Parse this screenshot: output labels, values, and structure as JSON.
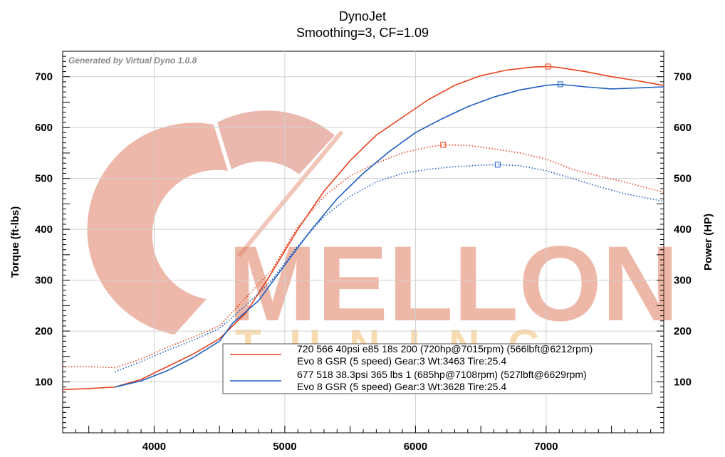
{
  "chart_data": {
    "type": "line",
    "title": "DynoJet",
    "subtitle": "Smoothing=3, CF=1.09",
    "watermark_note": "Generated by Virtual Dyno 1.0.8",
    "watermark_logo_text": "MELLON",
    "watermark_logo_subtext": "TUNING",
    "xlabel": "",
    "ylabel_left": "Torque (ft-lbs)",
    "ylabel_right": "Power (HP)",
    "xlim": [
      3300,
      7900
    ],
    "ylim": [
      0,
      750
    ],
    "x_ticks": [
      4000,
      5000,
      6000,
      7000
    ],
    "y_ticks": [
      100,
      200,
      300,
      400,
      500,
      600,
      700
    ],
    "grid": true,
    "legend_position": "bottom-right",
    "series": [
      {
        "name": "720 566 40psi e85 18s 200 (720hp@7015rpm) (566lbft@6212rpm)",
        "name_line2": "Evo 8 GSR (5 speed) Gear:3 Wt:3463 Tire:25.4",
        "measure": "power",
        "axis": "right",
        "color": "#e8431e",
        "style": "solid",
        "peak_marker": [
          7015,
          720
        ],
        "x": [
          3300,
          3500,
          3700,
          3900,
          4100,
          4300,
          4500,
          4700,
          4900,
          5100,
          5300,
          5500,
          5700,
          5900,
          6100,
          6300,
          6500,
          6700,
          6900,
          7015,
          7100,
          7300,
          7500,
          7700,
          7900
        ],
        "y": [
          85,
          87,
          90,
          105,
          130,
          155,
          185,
          235,
          315,
          400,
          475,
          535,
          585,
          620,
          655,
          683,
          702,
          713,
          719,
          720,
          718,
          710,
          700,
          692,
          683
        ]
      },
      {
        "name": "720 566 40psi e85 18s 200 torque",
        "measure": "torque",
        "axis": "left",
        "color": "#e8431e",
        "style": "dotted",
        "peak_marker": [
          6212,
          566
        ],
        "x": [
          3300,
          3500,
          3700,
          3900,
          4100,
          4300,
          4500,
          4700,
          4900,
          5100,
          5300,
          5500,
          5700,
          5900,
          6100,
          6212,
          6400,
          6600,
          6800,
          7000,
          7200,
          7400,
          7600,
          7900
        ],
        "y": [
          130,
          130,
          128,
          145,
          168,
          188,
          210,
          265,
          320,
          405,
          465,
          505,
          530,
          550,
          562,
          566,
          565,
          558,
          550,
          538,
          518,
          505,
          493,
          473
        ]
      },
      {
        "name": "677 518 38.3psi 365 lbs 1 (685hp@7108rpm) (527lbft@6629rpm)",
        "name_line2": "Evo 8 GSR (5 speed) Gear:3 Wt:3628 Tire:25.4",
        "measure": "power",
        "axis": "right",
        "color": "#1f5fc0",
        "style": "solid",
        "peak_marker": [
          7108,
          685
        ],
        "x": [
          3700,
          3900,
          4100,
          4300,
          4500,
          4600,
          4800,
          5000,
          5200,
          5400,
          5600,
          5800,
          6000,
          6200,
          6400,
          6600,
          6800,
          7000,
          7108,
          7300,
          7500,
          7700,
          7900
        ],
        "y": [
          90,
          102,
          122,
          148,
          180,
          215,
          260,
          330,
          398,
          460,
          510,
          553,
          590,
          617,
          641,
          660,
          674,
          683,
          685,
          680,
          676,
          678,
          680
        ]
      },
      {
        "name": "677 518 38.3psi 365 lbs 1 torque",
        "measure": "torque",
        "axis": "left",
        "color": "#1f5fc0",
        "style": "dotted",
        "peak_marker": [
          6629,
          527
        ],
        "x": [
          3700,
          3900,
          4100,
          4300,
          4500,
          4700,
          4900,
          5100,
          5300,
          5500,
          5700,
          5900,
          6100,
          6300,
          6500,
          6629,
          6800,
          7000,
          7200,
          7400,
          7600,
          7900
        ],
        "y": [
          120,
          140,
          162,
          182,
          205,
          250,
          300,
          368,
          425,
          465,
          493,
          510,
          518,
          523,
          526,
          527,
          525,
          515,
          500,
          484,
          470,
          455
        ]
      }
    ]
  }
}
